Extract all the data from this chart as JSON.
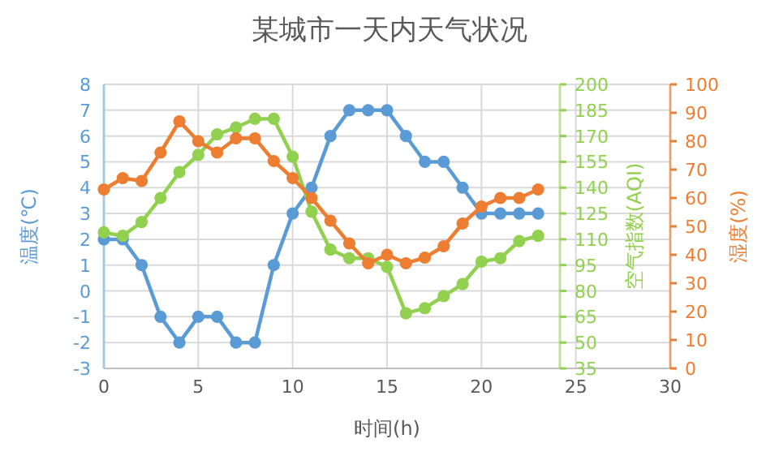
{
  "chart_data": {
    "type": "line",
    "title": "某城市一天内天气状况",
    "xlabel": "时间(h)",
    "ylabel": "温度(℃)",
    "y2label": "空气指数(AQI)",
    "y3label": "湿度(%)",
    "x": [
      0,
      1,
      2,
      3,
      4,
      5,
      6,
      7,
      8,
      9,
      10,
      11,
      12,
      13,
      14,
      15,
      16,
      17,
      18,
      19,
      20,
      21,
      22,
      23
    ],
    "series": [
      {
        "name": null,
        "color": "#5b9bd5",
        "values": [
          2,
          2,
          1,
          -1,
          -2,
          -1,
          -1,
          -2,
          -2,
          1,
          3,
          4,
          6,
          7,
          7,
          7,
          6,
          5,
          5,
          4,
          3,
          3,
          3,
          3
        ]
      },
      {
        "name": null,
        "color": "#92d050",
        "axis": "y2",
        "values": [
          114,
          112,
          120,
          134,
          149,
          159,
          171,
          175,
          180,
          180,
          158,
          126,
          104,
          99,
          99,
          94,
          67,
          70,
          77,
          84,
          97,
          99,
          109,
          112
        ]
      },
      {
        "name": null,
        "color": "#ed7d31",
        "axis": "y3",
        "values": [
          63,
          67,
          66,
          76,
          87,
          80,
          76,
          81,
          81,
          73,
          67,
          60,
          52,
          44,
          37,
          40,
          37,
          39,
          43,
          51,
          57,
          60,
          60,
          63
        ]
      }
    ],
    "xlim": [
      0,
      30
    ],
    "xticks": [
      0,
      5,
      10,
      15,
      20,
      25,
      30
    ],
    "ylim": [
      -3,
      8
    ],
    "yticks": [
      -3,
      -2,
      -1,
      0,
      1,
      2,
      3,
      4,
      5,
      6,
      7,
      8
    ],
    "y2lim": [
      35,
      200
    ],
    "y2ticks": [
      35,
      50,
      65,
      80,
      95,
      110,
      125,
      140,
      155,
      170,
      185,
      200
    ],
    "y3lim": [
      0,
      100
    ],
    "y3ticks": [
      0,
      10,
      20,
      30,
      40,
      50,
      60,
      70,
      80,
      90,
      100
    ],
    "grid": true,
    "marker": "circle",
    "line_style": "solid"
  }
}
